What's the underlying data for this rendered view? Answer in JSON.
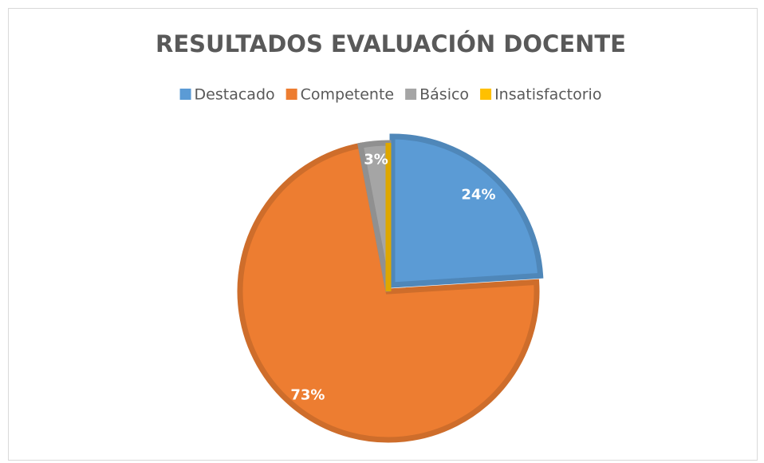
{
  "chart_data": {
    "type": "pie",
    "title": "RESULTADOS EVALUACIÓN DOCENTE",
    "categories": [
      "Destacado",
      "Competente",
      "Básico",
      "Insatisfactorio"
    ],
    "values": [
      24,
      73,
      3,
      0
    ],
    "value_labels": [
      "24%",
      "73%",
      "3%",
      null
    ],
    "colors": [
      "#5b9bd5",
      "#ed7d31",
      "#a5a5a5",
      "#ffc000"
    ],
    "legend": "top"
  }
}
